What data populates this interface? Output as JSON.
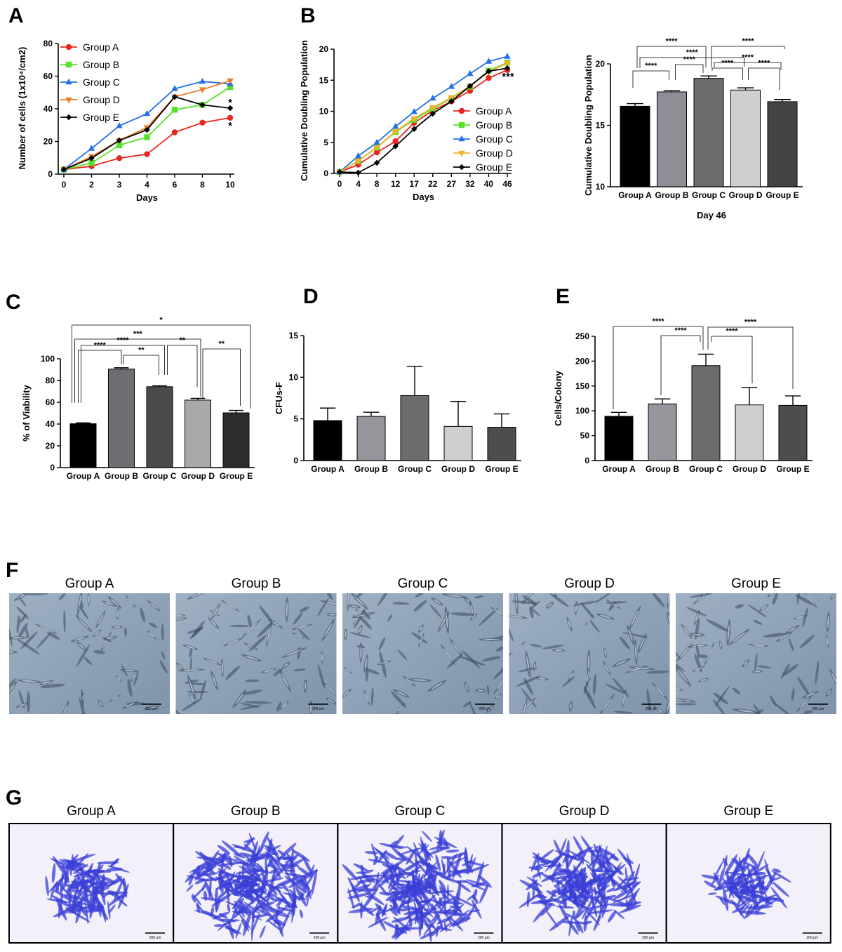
{
  "panel_labels": [
    "A",
    "B",
    "C",
    "D",
    "E",
    "F",
    "G"
  ],
  "chart_data": [
    {
      "id": "A",
      "type": "line",
      "xlabel": "Days",
      "ylabel": "Number of cells (1x10⁴/cm2)",
      "categories": [
        "0",
        "2",
        "3",
        "4",
        "6",
        "8",
        "10"
      ],
      "ylim": [
        0,
        80
      ],
      "yticks": [
        0,
        20,
        40,
        60,
        80
      ],
      "legend": "top-left",
      "series": [
        {
          "name": "Group A",
          "color": "#e8261f",
          "marker": "circle",
          "values": [
            2,
            4,
            9,
            11.5,
            25,
            31,
            34
          ]
        },
        {
          "name": "Group B",
          "color": "#58e02a",
          "marker": "square",
          "values": [
            2,
            6,
            17,
            22,
            39,
            42,
            53
          ]
        },
        {
          "name": "Group C",
          "color": "#2670e8",
          "marker": "triangle",
          "values": [
            2,
            15,
            29,
            36.5,
            52,
            56.5,
            55
          ]
        },
        {
          "name": "Group D",
          "color": "#f07a28",
          "marker": "triangle-down",
          "values": [
            2,
            10,
            20,
            28,
            47,
            51.5,
            57
          ]
        },
        {
          "name": "Group E",
          "color": "#000000",
          "marker": "diamond",
          "values": [
            2,
            9,
            20,
            26.5,
            47,
            42,
            40
          ]
        }
      ],
      "annotations": [
        "*",
        "*"
      ]
    },
    {
      "id": "B1",
      "type": "line",
      "xlabel": "Days",
      "ylabel": "Cumulative Doubling Population",
      "categories": [
        "0",
        "4",
        "8",
        "12",
        "17",
        "22",
        "27",
        "32",
        "40",
        "46"
      ],
      "ylim": [
        0,
        20
      ],
      "yticks": [
        0,
        5,
        10,
        15,
        20
      ],
      "legend": "bottom-right",
      "series": [
        {
          "name": "Group A",
          "color": "#e8261f",
          "marker": "circle",
          "values": [
            0,
            1.2,
            3.2,
            5,
            8,
            10,
            11.5,
            13.2,
            15.3,
            16.6
          ]
        },
        {
          "name": "Group B",
          "color": "#58e02a",
          "marker": "square",
          "values": [
            0,
            1.8,
            4,
            6.5,
            8.5,
            10.3,
            12,
            13.9,
            16.5,
            17.8
          ]
        },
        {
          "name": "Group C",
          "color": "#2670e8",
          "marker": "triangle",
          "values": [
            0,
            2.6,
            4.8,
            7.4,
            9.8,
            12,
            13.9,
            16,
            18,
            18.8
          ]
        },
        {
          "name": "Group D",
          "color": "#f5b02a",
          "marker": "triangle-down",
          "values": [
            0,
            1.8,
            4,
            6.6,
            8.7,
            10.5,
            12.1,
            14,
            16.3,
            17.7
          ]
        },
        {
          "name": "Group E",
          "color": "#000000",
          "marker": "diamond",
          "values": [
            0,
            -0.1,
            1.5,
            4.2,
            7,
            9.5,
            11.5,
            14,
            16.4,
            16.9
          ]
        }
      ],
      "annotations": [
        "***"
      ]
    },
    {
      "id": "B2",
      "type": "bar",
      "xlabel": "Day 46",
      "ylabel": "Cumulative Doubling Population",
      "categories": [
        "Group A",
        "Group B",
        "Group C",
        "Group D",
        "Group E"
      ],
      "values": [
        16.55,
        17.72,
        18.82,
        17.87,
        16.92
      ],
      "errors": [
        0.22,
        0.1,
        0.2,
        0.18,
        0.18
      ],
      "colors": [
        "#000000",
        "#8e8e96",
        "#6c6c6c",
        "#cfcfcf",
        "#444444"
      ],
      "ylim": [
        10,
        20
      ],
      "yticks": [
        10,
        15,
        20
      ],
      "significance": [
        {
          "from": 0,
          "to": 2,
          "label": "****"
        },
        {
          "from": 2,
          "to": 4,
          "label": "****"
        },
        {
          "from": 0,
          "to": 3,
          "label": "****"
        },
        {
          "from": 2,
          "to": 4,
          "label": "****"
        },
        {
          "from": 0,
          "to": 1,
          "label": "****"
        },
        {
          "from": 1,
          "to": 2,
          "label": "****"
        },
        {
          "from": 2,
          "to": 3,
          "label": "****"
        },
        {
          "from": 3,
          "to": 4,
          "label": "****"
        }
      ]
    },
    {
      "id": "C",
      "type": "bar",
      "xlabel": "",
      "ylabel": "% of Viability",
      "categories": [
        "Group A",
        "Group B",
        "Group C",
        "Group D",
        "Group E"
      ],
      "values": [
        40.3,
        90.5,
        74.3,
        62,
        50.3
      ],
      "errors": [
        0.8,
        1.2,
        0.8,
        1.6,
        2.2
      ],
      "colors": [
        "#000000",
        "#6e6e73",
        "#4a4a4a",
        "#a9a9a9",
        "#2c2c2c"
      ],
      "ylim": [
        0,
        100
      ],
      "yticks": [
        0,
        20,
        40,
        60,
        80,
        100
      ],
      "significance": [
        {
          "from": 0,
          "to": 4,
          "label": "*"
        },
        {
          "from": 0,
          "to": 3,
          "label": "***"
        },
        {
          "from": 0,
          "to": 1,
          "label": "****"
        },
        {
          "from": 0,
          "to": 2,
          "label": "****"
        },
        {
          "from": 1,
          "to": 2,
          "label": "**"
        },
        {
          "from": 2,
          "to": 3,
          "label": "**"
        },
        {
          "from": 3,
          "to": 4,
          "label": "**"
        }
      ]
    },
    {
      "id": "D",
      "type": "bar",
      "xlabel": "",
      "ylabel": "CFUs-F",
      "categories": [
        "Group A",
        "Group B",
        "Group C",
        "Group D",
        "Group E"
      ],
      "values": [
        4.8,
        5.3,
        7.8,
        4.1,
        4
      ],
      "errors": [
        1.5,
        0.5,
        3.5,
        3,
        1.6
      ],
      "colors": [
        "#000000",
        "#96969c",
        "#6c6c6c",
        "#cfcfcf",
        "#4d4d4d"
      ],
      "ylim": [
        0,
        15
      ],
      "yticks": [
        0,
        5,
        10,
        15
      ]
    },
    {
      "id": "E",
      "type": "bar",
      "xlabel": "",
      "ylabel": "Cells/Colony",
      "categories": [
        "Group A",
        "Group B",
        "Group C",
        "Group D",
        "Group E"
      ],
      "values": [
        89,
        114,
        191,
        112,
        111
      ],
      "errors": [
        8,
        10,
        23,
        35,
        19
      ],
      "colors": [
        "#000000",
        "#96969c",
        "#6c6c6c",
        "#cfcfcf",
        "#4d4d4d"
      ],
      "ylim": [
        0,
        250
      ],
      "yticks": [
        0,
        50,
        100,
        150,
        200,
        250
      ],
      "significance": [
        {
          "from": 0,
          "to": 2,
          "label": "****"
        },
        {
          "from": 1,
          "to": 2,
          "label": "****"
        },
        {
          "from": 2,
          "to": 3,
          "label": "****"
        },
        {
          "from": 2,
          "to": 4,
          "label": "****"
        }
      ]
    }
  ],
  "micrographs_F": {
    "titles": [
      "Group A",
      "Group B",
      "Group C",
      "Group D",
      "Group E"
    ],
    "scale_label": "200 μm",
    "tint": "#8da0b6"
  },
  "micrographs_G": {
    "titles": [
      "Group A",
      "Group B",
      "Group C",
      "Group D",
      "Group E"
    ],
    "scale_label": "200 μm",
    "stain_color": "#3a3fd6",
    "colony_density": [
      0.35,
      0.9,
      1.0,
      0.75,
      0.25
    ]
  }
}
